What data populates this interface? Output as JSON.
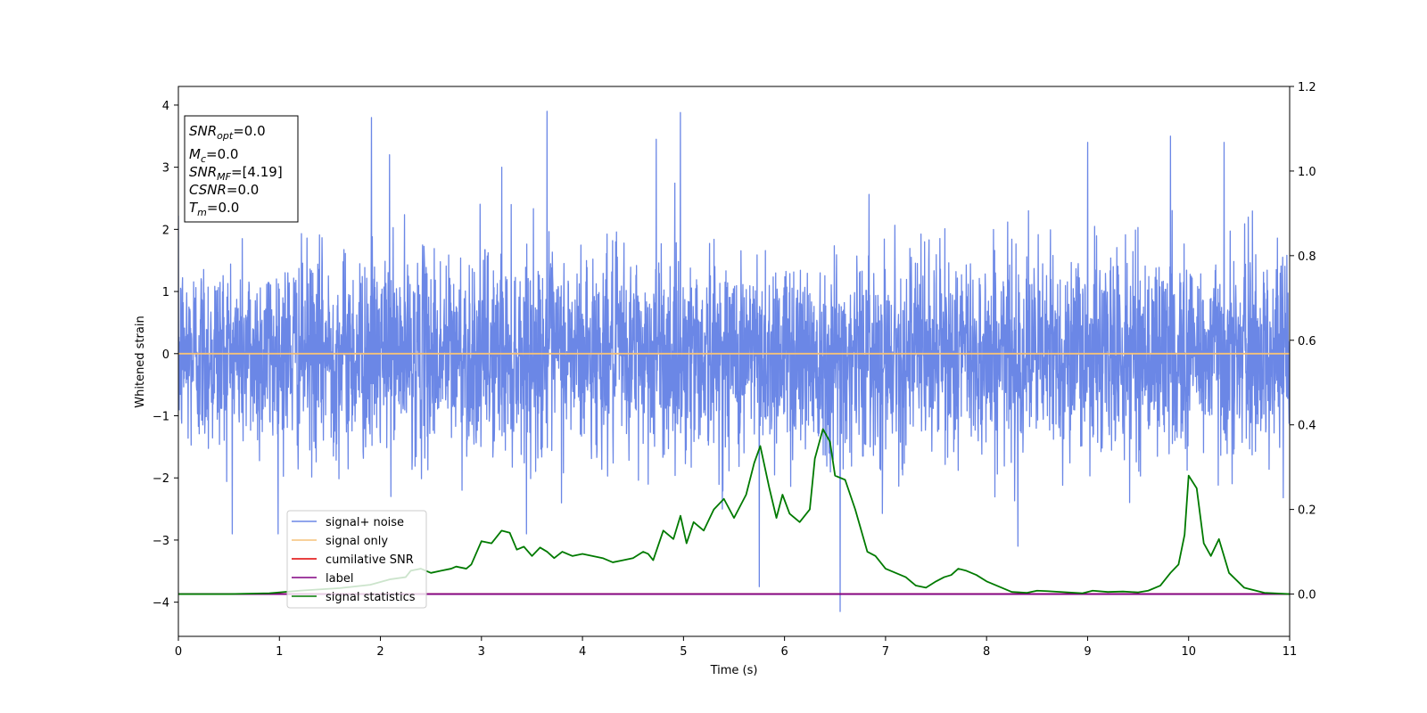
{
  "chart_data": {
    "type": "line",
    "xlabel": "Time (s)",
    "ylabel": "Whitened strain",
    "xlim": [
      0,
      11
    ],
    "ylim_left": [
      -4.55,
      4.3
    ],
    "ylim_right": [
      -0.1,
      1.2
    ],
    "x_ticks": [
      "0",
      "1",
      "2",
      "3",
      "4",
      "5",
      "6",
      "7",
      "8",
      "9",
      "10",
      "11"
    ],
    "y_ticks_left": [
      "4",
      "3",
      "2",
      "1",
      "0",
      "−1",
      "−2",
      "−3",
      "−4"
    ],
    "y_ticks_right": [
      "1.2",
      "1.0",
      "0.8",
      "0.6",
      "0.4",
      "0.2",
      "0.0"
    ],
    "info_box": {
      "snr_opt": {
        "base": "SNR",
        "sub": "opt",
        "value": "=0.0"
      },
      "mc": {
        "base": "M",
        "sub": "c",
        "value": "=0.0"
      },
      "snr_mf": {
        "base": "SNR",
        "sub": "MF",
        "value": "=[4.19]"
      },
      "csnr": {
        "base": "CSNR",
        "value": "=0.0"
      },
      "tm": {
        "base": "T",
        "sub": "m",
        "value": "=0.0"
      }
    },
    "legend": {
      "placement": "lower-left",
      "entries": [
        {
          "label": "signal+ noise",
          "color": "#6b87e6"
        },
        {
          "label": "signal only",
          "color": "#f5c27a"
        },
        {
          "label": "cumilative SNR",
          "color": "#e00000"
        },
        {
          "label": "label",
          "color": "#800080"
        },
        {
          "label": "signal statistics",
          "color": "#007a00"
        }
      ]
    },
    "series": [
      {
        "name": "signal+ noise",
        "axis": "left",
        "color": "#6b87e6",
        "style": "random noise, std about 0.9, peaks near ±4",
        "x_range": [
          0,
          11
        ],
        "peaks": [
          {
            "x": 1.91,
            "y": 3.8
          },
          {
            "x": 3.65,
            "y": 3.9
          },
          {
            "x": 4.97,
            "y": 3.88
          },
          {
            "x": 9.82,
            "y": 3.5
          },
          {
            "x": 6.55,
            "y": -4.15
          },
          {
            "x": 5.75,
            "y": -3.75
          },
          {
            "x": 4.73,
            "y": 3.45
          },
          {
            "x": 2.09,
            "y": 3.2
          },
          {
            "x": 9.0,
            "y": 3.4
          },
          {
            "x": 10.35,
            "y": 3.4
          },
          {
            "x": 8.31,
            "y": -3.1
          },
          {
            "x": 3.2,
            "y": 3.0
          }
        ]
      },
      {
        "name": "signal only",
        "axis": "left",
        "color": "#f5c27a",
        "x": [
          0,
          11
        ],
        "y": [
          0,
          0
        ]
      },
      {
        "name": "cumilative SNR",
        "axis": "right",
        "color": "#e00000",
        "x": [
          0,
          11
        ],
        "y": [
          0,
          0
        ]
      },
      {
        "name": "label",
        "axis": "right",
        "color": "#800080",
        "x": [
          0,
          11
        ],
        "y": [
          0,
          0
        ]
      },
      {
        "name": "signal statistics",
        "axis": "right",
        "color": "#007a00",
        "x": [
          0,
          0.5,
          0.9,
          1.2,
          1.6,
          1.9,
          2.1,
          2.25,
          2.3,
          2.4,
          2.5,
          2.6,
          2.7,
          2.75,
          2.85,
          2.9,
          3.0,
          3.1,
          3.2,
          3.28,
          3.35,
          3.42,
          3.5,
          3.58,
          3.65,
          3.72,
          3.8,
          3.9,
          4.0,
          4.1,
          4.2,
          4.3,
          4.4,
          4.5,
          4.6,
          4.65,
          4.7,
          4.8,
          4.9,
          4.97,
          5.03,
          5.1,
          5.2,
          5.3,
          5.4,
          5.5,
          5.62,
          5.7,
          5.76,
          5.85,
          5.92,
          5.98,
          6.05,
          6.15,
          6.25,
          6.3,
          6.38,
          6.45,
          6.5,
          6.6,
          6.7,
          6.82,
          6.9,
          7.0,
          7.1,
          7.2,
          7.3,
          7.4,
          7.5,
          7.58,
          7.65,
          7.72,
          7.8,
          7.9,
          8.0,
          8.1,
          8.25,
          8.4,
          8.5,
          8.6,
          8.8,
          8.95,
          9.05,
          9.2,
          9.35,
          9.5,
          9.6,
          9.72,
          9.82,
          9.9,
          9.96,
          10.0,
          10.08,
          10.15,
          10.22,
          10.3,
          10.4,
          10.55,
          10.75,
          11.0
        ],
        "y": [
          0.0,
          0.0,
          0.002,
          0.008,
          0.014,
          0.022,
          0.035,
          0.04,
          0.055,
          0.06,
          0.05,
          0.055,
          0.06,
          0.065,
          0.06,
          0.07,
          0.125,
          0.12,
          0.15,
          0.145,
          0.105,
          0.112,
          0.09,
          0.11,
          0.1,
          0.085,
          0.1,
          0.09,
          0.095,
          0.09,
          0.085,
          0.075,
          0.08,
          0.085,
          0.1,
          0.095,
          0.08,
          0.15,
          0.13,
          0.185,
          0.12,
          0.17,
          0.15,
          0.2,
          0.225,
          0.18,
          0.235,
          0.31,
          0.35,
          0.25,
          0.18,
          0.235,
          0.19,
          0.17,
          0.2,
          0.32,
          0.39,
          0.36,
          0.28,
          0.27,
          0.2,
          0.1,
          0.09,
          0.06,
          0.05,
          0.04,
          0.02,
          0.015,
          0.03,
          0.04,
          0.045,
          0.06,
          0.055,
          0.045,
          0.03,
          0.02,
          0.005,
          0.003,
          0.008,
          0.007,
          0.004,
          0.002,
          0.008,
          0.005,
          0.006,
          0.004,
          0.008,
          0.02,
          0.05,
          0.07,
          0.14,
          0.28,
          0.25,
          0.12,
          0.09,
          0.13,
          0.05,
          0.015,
          0.003,
          0.0
        ]
      }
    ]
  }
}
